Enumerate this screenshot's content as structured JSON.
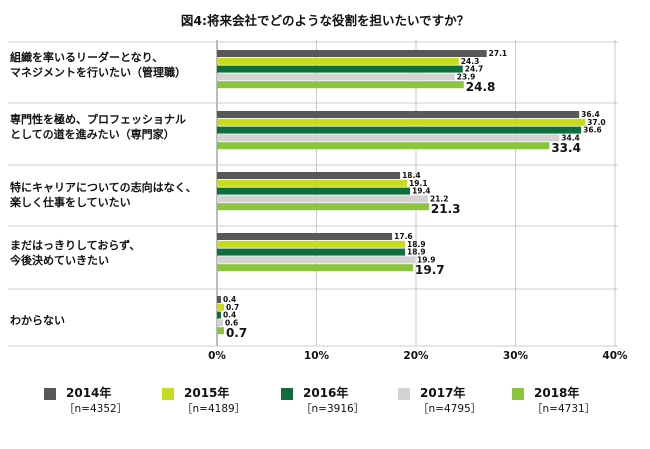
{
  "chart_data": {
    "type": "bar",
    "orientation": "horizontal",
    "title": "図4:将来会社でどのような役割を担いたいですか？",
    "categories": [
      "組織を率いるリーダーとなり、\nマネジメントを行いたい（管理職）",
      "専門性を極め、プロフェッショナル\nとしての道を進みたい（専門家）",
      "特にキャリアについての志向はなく、\n楽しく仕事をしていたい",
      "まだはっきりしておらず、\n今後決めていきたい",
      "わからない"
    ],
    "series": [
      {
        "name": "2014年",
        "n": "［n=4352］",
        "color": "#58585a",
        "values": [
          27.1,
          36.4,
          18.4,
          17.6,
          0.4
        ]
      },
      {
        "name": "2015年",
        "n": "［n=4189］",
        "color": "#c8dc1e",
        "values": [
          24.3,
          37.0,
          19.1,
          18.9,
          0.7
        ]
      },
      {
        "name": "2016年",
        "n": "［n=3916］",
        "color": "#0f6e3c",
        "values": [
          24.7,
          36.6,
          19.4,
          18.9,
          0.4
        ]
      },
      {
        "name": "2017年",
        "n": "［n=4795］",
        "color": "#d3d3d3",
        "values": [
          23.9,
          34.4,
          21.2,
          19.9,
          0.6
        ]
      },
      {
        "name": "2018年",
        "n": "［n=4731］",
        "color": "#8cc43e",
        "values": [
          24.8,
          33.4,
          21.3,
          19.7,
          0.7
        ]
      }
    ],
    "xlim": [
      0,
      40
    ],
    "ticks": [
      "0%",
      "10%",
      "20%",
      "30%",
      "40%"
    ],
    "tick_values": [
      0,
      10,
      20,
      30,
      40
    ],
    "grid": true,
    "legend": "bottom"
  }
}
